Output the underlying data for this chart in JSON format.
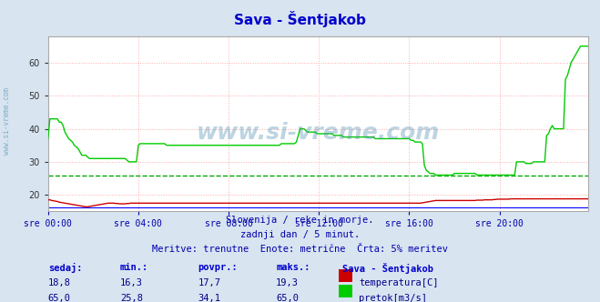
{
  "title": "Sava - Šentjakob",
  "bg_color": "#d8e4f0",
  "plot_bg_color": "#ffffff",
  "grid_color": "#ffaaaa",
  "xlabel_color": "#0000aa",
  "title_color": "#0000cc",
  "subtitle_lines": [
    "Slovenija / reke in morje.",
    "zadnji dan / 5 minut.",
    "Meritve: trenutne  Enote: metrične  Črta: 5% meritev"
  ],
  "watermark": "www.si-vreme.com",
  "watermark_color": "#4488aa",
  "ylim": [
    15,
    68
  ],
  "yticks": [
    20,
    30,
    40,
    50,
    60
  ],
  "x_labels": [
    "sre 00:00",
    "sre 04:00",
    "sre 08:00",
    "sre 12:00",
    "sre 16:00",
    "sre 20:00"
  ],
  "x_ticks_pos": [
    0,
    48,
    96,
    144,
    192,
    240
  ],
  "total_points": 288,
  "temp_color": "#cc0000",
  "flow_color": "#00cc00",
  "avg_line_color": "#00aa00",
  "avg_line_value": 25.8,
  "blue_line_value": 16.3,
  "blue_line_color": "#0000ff",
  "table_header_color": "#0000cc",
  "table_value_color": "#000088",
  "table_headers": [
    "sedaj:",
    "min.:",
    "povpr.:",
    "maks.:"
  ],
  "temp_row": [
    "18,8",
    "16,3",
    "17,7",
    "19,3"
  ],
  "flow_row": [
    "65,0",
    "25,8",
    "34,1",
    "65,0"
  ],
  "legend_title": "Sava - Šentjakob",
  "legend_temp": "temperatura[C]",
  "legend_flow": "pretok[m3/s]",
  "temp_data": [
    18.5,
    18.5,
    18.3,
    18.2,
    18.1,
    18.0,
    17.8,
    17.7,
    17.6,
    17.5,
    17.4,
    17.3,
    17.2,
    17.1,
    17.0,
    16.9,
    16.8,
    16.7,
    16.6,
    16.5,
    16.4,
    16.4,
    16.5,
    16.6,
    16.7,
    16.8,
    16.9,
    17.0,
    17.1,
    17.2,
    17.3,
    17.4,
    17.5,
    17.5,
    17.5,
    17.5,
    17.4,
    17.4,
    17.3,
    17.3,
    17.3,
    17.3,
    17.4,
    17.4,
    17.5,
    17.5,
    17.5,
    17.5,
    17.5,
    17.5,
    17.5,
    17.5,
    17.5,
    17.5,
    17.5,
    17.5,
    17.5,
    17.5,
    17.5,
    17.5,
    17.5,
    17.5,
    17.5,
    17.5,
    17.5,
    17.5,
    17.5,
    17.5,
    17.5,
    17.5,
    17.5,
    17.5,
    17.5,
    17.5,
    17.5,
    17.5,
    17.5,
    17.5,
    17.5,
    17.5,
    17.5,
    17.5,
    17.5,
    17.5,
    17.5,
    17.5,
    17.5,
    17.5,
    17.5,
    17.5,
    17.5,
    17.5,
    17.5,
    17.5,
    17.5,
    17.5,
    17.5,
    17.5,
    17.5,
    17.5,
    17.5,
    17.5,
    17.5,
    17.5,
    17.5,
    17.5,
    17.5,
    17.5,
    17.5,
    17.5,
    17.5,
    17.5,
    17.5,
    17.5,
    17.5,
    17.5,
    17.5,
    17.5,
    17.5,
    17.5,
    17.5,
    17.5,
    17.5,
    17.5,
    17.5,
    17.5,
    17.5,
    17.5,
    17.5,
    17.5,
    17.5,
    17.5,
    17.5,
    17.5,
    17.5,
    17.5,
    17.5,
    17.5,
    17.5,
    17.5,
    17.5,
    17.5,
    17.5,
    17.5,
    17.5,
    17.5,
    17.5,
    17.5,
    17.5,
    17.5,
    17.5,
    17.5,
    17.5,
    17.5,
    17.5,
    17.5,
    17.5,
    17.5,
    17.5,
    17.5,
    17.5,
    17.5,
    17.5,
    17.5,
    17.5,
    17.5,
    17.5,
    17.5,
    17.5,
    17.5,
    17.5,
    17.5,
    17.5,
    17.5,
    17.5,
    17.5,
    17.5,
    17.5,
    17.5,
    17.5,
    17.5,
    17.5,
    17.5,
    17.5,
    17.5,
    17.5,
    17.5,
    17.5,
    17.5,
    17.5,
    17.5,
    17.5,
    17.5,
    17.5,
    17.5,
    17.5,
    17.5,
    17.5,
    17.5,
    17.6,
    17.7,
    17.8,
    17.9,
    18.0,
    18.1,
    18.2,
    18.3,
    18.3,
    18.3,
    18.3,
    18.3,
    18.3,
    18.3,
    18.3,
    18.3,
    18.3,
    18.3,
    18.3,
    18.3,
    18.3,
    18.3,
    18.3,
    18.3,
    18.3,
    18.3,
    18.3,
    18.3,
    18.3,
    18.4,
    18.4,
    18.4,
    18.4,
    18.5,
    18.5,
    18.5,
    18.5,
    18.5,
    18.6,
    18.6,
    18.7,
    18.7,
    18.7,
    18.7,
    18.7,
    18.7,
    18.7,
    18.8,
    18.8,
    18.8,
    18.8,
    18.8,
    18.8,
    18.8,
    18.8,
    18.8,
    18.8,
    18.8,
    18.8,
    18.8,
    18.8,
    18.8,
    18.8,
    18.8,
    18.8,
    18.8,
    18.8,
    18.8,
    18.8,
    18.8,
    18.8,
    18.8,
    18.8,
    18.8,
    18.8,
    18.8,
    18.8,
    18.8,
    18.8,
    18.8,
    18.8,
    18.8,
    18.8,
    18.8,
    18.8,
    18.8,
    18.8,
    18.8,
    18.8
  ],
  "flow_data": [
    37.0,
    43.0,
    43.0,
    43.0,
    43.0,
    43.0,
    42.0,
    42.0,
    41.0,
    39.0,
    38.0,
    37.0,
    36.5,
    36.0,
    35.0,
    34.5,
    34.0,
    33.0,
    32.0,
    32.0,
    32.0,
    31.5,
    31.0,
    31.0,
    31.0,
    31.0,
    31.0,
    31.0,
    31.0,
    31.0,
    31.0,
    31.0,
    31.0,
    31.0,
    31.0,
    31.0,
    31.0,
    31.0,
    31.0,
    31.0,
    31.0,
    31.0,
    30.5,
    30.0,
    30.0,
    30.0,
    30.0,
    30.0,
    35.0,
    35.5,
    35.5,
    35.5,
    35.5,
    35.5,
    35.5,
    35.5,
    35.5,
    35.5,
    35.5,
    35.5,
    35.5,
    35.5,
    35.5,
    35.0,
    35.0,
    35.0,
    35.0,
    35.0,
    35.0,
    35.0,
    35.0,
    35.0,
    35.0,
    35.0,
    35.0,
    35.0,
    35.0,
    35.0,
    35.0,
    35.0,
    35.0,
    35.0,
    35.0,
    35.0,
    35.0,
    35.0,
    35.0,
    35.0,
    35.0,
    35.0,
    35.0,
    35.0,
    35.0,
    35.0,
    35.0,
    35.0,
    35.0,
    35.0,
    35.0,
    35.0,
    35.0,
    35.0,
    35.0,
    35.0,
    35.0,
    35.0,
    35.0,
    35.0,
    35.0,
    35.0,
    35.0,
    35.0,
    35.0,
    35.0,
    35.0,
    35.0,
    35.0,
    35.0,
    35.0,
    35.0,
    35.0,
    35.0,
    35.0,
    35.0,
    35.5,
    35.5,
    35.5,
    35.5,
    35.5,
    35.5,
    35.5,
    35.5,
    36.0,
    38.0,
    40.0,
    40.0,
    40.0,
    39.5,
    39.0,
    39.0,
    39.0,
    39.0,
    39.0,
    38.5,
    38.5,
    38.5,
    38.5,
    38.5,
    38.5,
    38.5,
    38.5,
    38.5,
    38.0,
    38.0,
    38.0,
    38.0,
    38.0,
    37.5,
    37.5,
    37.5,
    37.5,
    37.5,
    37.5,
    37.5,
    37.5,
    37.5,
    37.5,
    37.5,
    37.5,
    37.5,
    37.5,
    37.5,
    37.5,
    37.5,
    37.0,
    37.0,
    37.0,
    37.0,
    37.0,
    37.0,
    37.0,
    37.0,
    37.0,
    37.0,
    37.0,
    37.0,
    37.0,
    37.0,
    37.0,
    37.0,
    37.0,
    37.0,
    37.0,
    36.5,
    36.5,
    36.0,
    36.0,
    36.0,
    36.0,
    35.5,
    29.0,
    27.5,
    27.0,
    26.5,
    26.5,
    26.5,
    26.0,
    26.0,
    26.0,
    26.0,
    26.0,
    26.0,
    26.0,
    26.0,
    26.0,
    26.0,
    26.5,
    26.5,
    26.5,
    26.5,
    26.5,
    26.5,
    26.5,
    26.5,
    26.5,
    26.5,
    26.5,
    26.5,
    26.0,
    26.0,
    26.0,
    26.0,
    26.0,
    26.0,
    26.0,
    26.0,
    26.0,
    26.0,
    26.0,
    26.0,
    26.0,
    26.0,
    26.0,
    26.0,
    26.0,
    26.0,
    26.0,
    26.0,
    26.0,
    30.0,
    30.0,
    30.0,
    30.0,
    30.0,
    29.5,
    29.5,
    29.5,
    29.5,
    30.0,
    30.0,
    30.0,
    30.0,
    30.0,
    30.0,
    30.0,
    38.0,
    38.5,
    40.0,
    41.0,
    40.0,
    40.0,
    40.0,
    40.0,
    40.0,
    40.0,
    55.0,
    56.0,
    58.0,
    60.0,
    61.0,
    62.0,
    63.0,
    64.0,
    65.0,
    65.0,
    65.0,
    65.0,
    65.0
  ]
}
